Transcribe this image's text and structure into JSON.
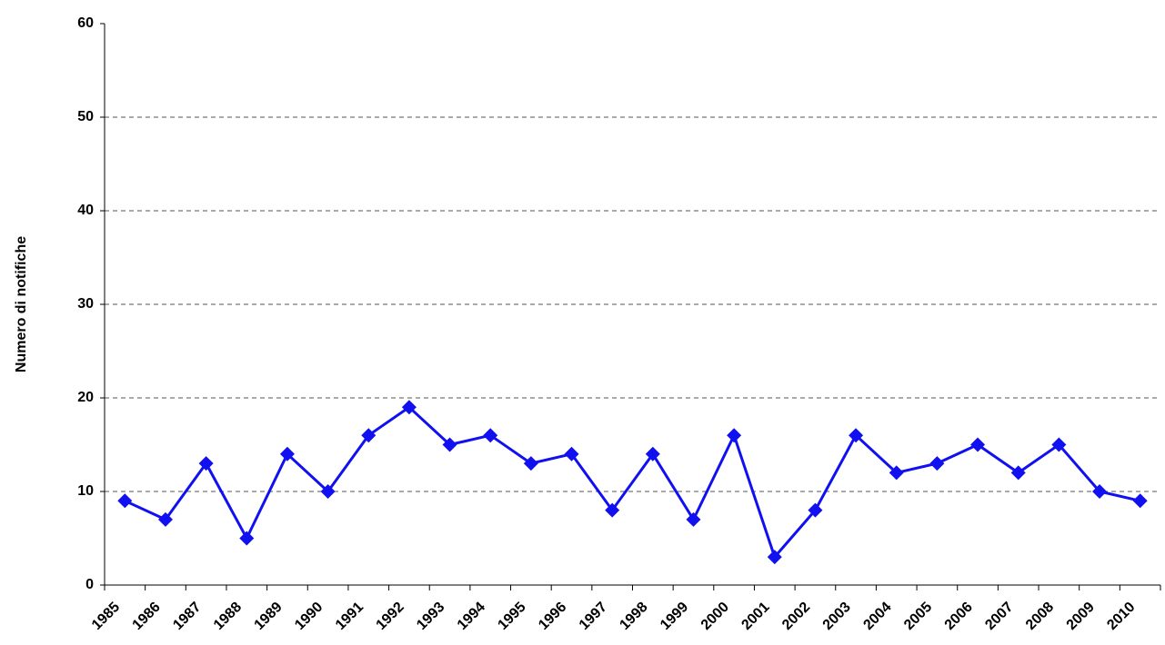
{
  "chart_data": {
    "type": "line",
    "y_label": "Numero di notifiche",
    "categories": [
      "1985",
      "1986",
      "1987",
      "1988",
      "1989",
      "1990",
      "1991",
      "1992",
      "1993",
      "1994",
      "1995",
      "1996",
      "1997",
      "1998",
      "1999",
      "2000",
      "2001",
      "2002",
      "2003",
      "2004",
      "2005",
      "2006",
      "2007",
      "2008",
      "2009",
      "2010"
    ],
    "values": [
      9,
      7,
      13,
      5,
      14,
      10,
      16,
      19,
      15,
      16,
      13,
      14,
      8,
      14,
      7,
      16,
      3,
      8,
      16,
      12,
      13,
      15,
      12,
      15,
      10,
      9
    ],
    "color": "#1010f0",
    "ylim": [
      0,
      60
    ],
    "yticks": [
      0,
      10,
      20,
      30,
      40,
      50,
      60
    ],
    "grid": true
  }
}
